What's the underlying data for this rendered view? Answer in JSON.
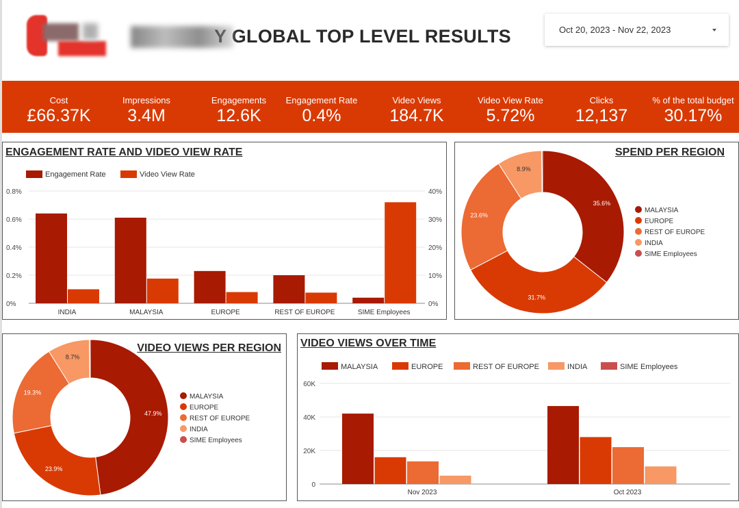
{
  "header": {
    "title": "Y GLOBAL TOP LEVEL RESULTS",
    "date_range": "Oct 20, 2023 - Nov 22, 2023"
  },
  "kpis": [
    {
      "label": "Cost",
      "value": "£66.37K"
    },
    {
      "label": "Impressions",
      "value": "3.4M"
    },
    {
      "label": "Engagements",
      "value": "12.6K"
    },
    {
      "label": "Engagement Rate",
      "value": "0.4%"
    },
    {
      "label": "Video Views",
      "value": "184.7K"
    },
    {
      "label": "Video View Rate",
      "value": "5.72%"
    },
    {
      "label": "Clicks",
      "value": "12,137"
    },
    {
      "label": "% of the total budget",
      "value": "30.17%"
    }
  ],
  "colors": {
    "kpi_bg": "#d93a04",
    "malaysia": "#a81a02",
    "europe": "#d93a04",
    "rest_of_europe": "#ec6a33",
    "india": "#f79865",
    "sime": "#c94f4f",
    "engagement_rate": "#a81a02",
    "video_view_rate": "#d93a04"
  },
  "chart_data": [
    {
      "id": "engagement",
      "type": "bar",
      "title": "ENGAGEMENT RATE AND VIDEO VIEW RATE",
      "categories": [
        "INDIA",
        "MALAYSIA",
        "EUROPE",
        "REST OF EUROPE",
        "SIME Employees"
      ],
      "series": [
        {
          "name": "Engagement Rate",
          "axis": "left",
          "values": [
            0.0064,
            0.0061,
            0.0023,
            0.002,
            0.0004
          ]
        },
        {
          "name": "Video View Rate",
          "axis": "right",
          "values": [
            0.05,
            0.088,
            0.04,
            0.038,
            0.36
          ]
        }
      ],
      "y_left": {
        "ticks": [
          "0%",
          "0.2%",
          "0.4%",
          "0.6%",
          "0.8%"
        ],
        "lim": [
          0,
          0.008
        ]
      },
      "y_right": {
        "ticks": [
          "0%",
          "10%",
          "20%",
          "30%",
          "40%"
        ],
        "lim": [
          0,
          0.4
        ]
      },
      "legend": "top-left",
      "grid": true
    },
    {
      "id": "spend",
      "type": "pie",
      "title": "SPEND PER REGION",
      "labels": [
        "MALAYSIA",
        "EUROPE",
        "REST OF EUROPE",
        "INDIA",
        "SIME Employees"
      ],
      "values": [
        35.6,
        31.7,
        23.6,
        8.9,
        0.2
      ],
      "data_labels": [
        "35.6%",
        "31.7%",
        "23.6%",
        "8.9%",
        ""
      ],
      "legend": "right"
    },
    {
      "id": "videoviews",
      "type": "pie",
      "title": "VIDEO VIEWS PER REGION",
      "labels": [
        "MALAYSIA",
        "EUROPE",
        "REST OF EUROPE",
        "INDIA",
        "SIME Employees"
      ],
      "values": [
        47.9,
        23.9,
        19.3,
        8.7,
        0.2
      ],
      "data_labels": [
        "47.9%",
        "23.9%",
        "19.3%",
        "8.7%",
        ""
      ],
      "legend": "right"
    },
    {
      "id": "overtime",
      "type": "bar",
      "title": "VIDEO VIEWS OVER TIME",
      "categories": [
        "Nov 2023",
        "Oct 2023"
      ],
      "series": [
        {
          "name": "MALAYSIA",
          "values": [
            42000,
            46500
          ]
        },
        {
          "name": "EUROPE",
          "values": [
            16000,
            28000
          ]
        },
        {
          "name": "REST OF EUROPE",
          "values": [
            13500,
            22000
          ]
        },
        {
          "name": "INDIA",
          "values": [
            5000,
            10500
          ]
        },
        {
          "name": "SIME Employees",
          "values": [
            0,
            0
          ]
        }
      ],
      "y_ticks": [
        "0",
        "20K",
        "40K",
        "60K"
      ],
      "ylim": [
        0,
        60000
      ],
      "legend": "top",
      "grid": true
    }
  ]
}
